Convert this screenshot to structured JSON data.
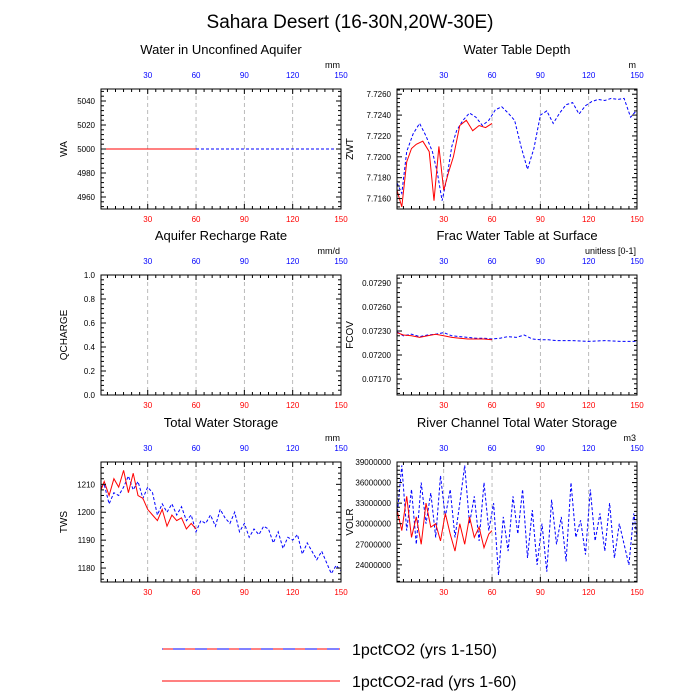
{
  "figure": {
    "title": "Sahara Desert (16-30N,20W-30E)",
    "colors": {
      "ctrl": "#0000ff",
      "rad": "#ff0000",
      "axis": "#000000",
      "grid": "#aaaaaa"
    }
  },
  "legend": {
    "items": [
      {
        "label": "1pctCO2 (yrs 1-150)",
        "style": "dashed-red-blue"
      },
      {
        "label": "1pctCO2-rad (yrs 1-60)",
        "style": "solid-red"
      }
    ]
  },
  "chart_data": [
    {
      "type": "line",
      "title": "Water in Unconfined Aquifer",
      "ylabel": "WA",
      "units": "mm",
      "xlim": [
        1,
        150
      ],
      "ylim": [
        4950,
        5050
      ],
      "yticks": [
        4960,
        4980,
        5000,
        5020,
        5040
      ],
      "xticks": [
        30,
        60,
        90,
        120,
        150
      ],
      "grid": true,
      "series": [
        {
          "name": "1pctCO2 (yrs 1-150)",
          "color": "#0000ff",
          "x": [
            1,
            150
          ],
          "y": [
            5000,
            5000
          ]
        },
        {
          "name": "1pctCO2-rad (yrs 1-60)",
          "color": "#ff0000",
          "x": [
            1,
            60
          ],
          "y": [
            5000,
            5000
          ]
        }
      ]
    },
    {
      "type": "line",
      "title": "Water Table Depth",
      "ylabel": "ZWT",
      "units": "m",
      "xlim": [
        1,
        150
      ],
      "ylim": [
        7.715,
        7.7265
      ],
      "yticks": [
        7.716,
        7.718,
        7.72,
        7.722,
        7.724,
        7.726
      ],
      "yticklabels": [
        "7.7160",
        "7.7180",
        "7.7200",
        "7.7220",
        "7.7240",
        "7.7260"
      ],
      "xticks": [
        30,
        60,
        90,
        120,
        150
      ],
      "grid": true,
      "series": [
        {
          "name": "1pctCO2 (yrs 1-150)",
          "color": "#0000ff",
          "x": [
            1,
            4,
            7,
            11,
            15,
            19,
            23,
            26,
            29,
            32,
            35,
            38,
            42,
            46,
            50,
            54,
            58,
            62,
            66,
            70,
            74,
            78,
            82,
            86,
            90,
            94,
            98,
            102,
            106,
            110,
            114,
            118,
            122,
            126,
            130,
            134,
            138,
            142,
            146,
            150
          ],
          "y": [
            7.7175,
            7.7165,
            7.7205,
            7.7222,
            7.7232,
            7.722,
            7.7205,
            7.7185,
            7.7158,
            7.718,
            7.721,
            7.7225,
            7.7235,
            7.7242,
            7.7238,
            7.723,
            7.7235,
            7.7245,
            7.7248,
            7.7242,
            7.7235,
            7.721,
            7.7188,
            7.7208,
            7.724,
            7.7244,
            7.7232,
            7.7242,
            7.725,
            7.7252,
            7.7241,
            7.7249,
            7.7253,
            7.7255,
            7.7254,
            7.7256,
            7.7255,
            7.7256,
            7.7238,
            7.7245
          ]
        },
        {
          "name": "1pctCO2-rad (yrs 1-60)",
          "color": "#ff0000",
          "x": [
            1,
            4,
            7,
            10,
            13,
            17,
            21,
            24,
            27,
            30,
            33,
            36,
            40,
            44,
            48,
            52,
            56,
            60
          ],
          "y": [
            7.7168,
            7.7152,
            7.7195,
            7.7208,
            7.7212,
            7.7215,
            7.7205,
            7.7158,
            7.721,
            7.7168,
            7.7185,
            7.72,
            7.723,
            7.7235,
            7.7225,
            7.723,
            7.7228,
            7.7232
          ]
        }
      ]
    },
    {
      "type": "line",
      "title": "Aquifer Recharge Rate",
      "ylabel": "QCHARGE",
      "units": "mm/d",
      "xlim": [
        1,
        150
      ],
      "ylim": [
        0.0,
        1.0
      ],
      "yticks": [
        0.0,
        0.2,
        0.4,
        0.6,
        0.8,
        1.0
      ],
      "yticklabels": [
        "0.0",
        "0.2",
        "0.4",
        "0.6",
        "0.8",
        "1.0"
      ],
      "xticks": [
        30,
        60,
        90,
        120,
        150
      ],
      "grid": true,
      "series": []
    },
    {
      "type": "line",
      "title": "Frac Water Table at Surface",
      "ylabel": "FCOV",
      "units": "unitless [0-1]",
      "xlim": [
        1,
        150
      ],
      "ylim": [
        0.0715,
        0.073
      ],
      "yticks": [
        0.0717,
        0.072,
        0.0723,
        0.0726,
        0.0729
      ],
      "yticklabels": [
        "0.07170",
        "0.07200",
        "0.07230",
        "0.07260",
        "0.07290"
      ],
      "xticks": [
        30,
        60,
        90,
        120,
        150
      ],
      "grid": true,
      "series": [
        {
          "name": "1pctCO2 (yrs 1-150)",
          "color": "#0000ff",
          "x": [
            1,
            5,
            10,
            15,
            20,
            25,
            30,
            35,
            40,
            45,
            50,
            55,
            60,
            65,
            70,
            75,
            80,
            85,
            90,
            95,
            100,
            110,
            120,
            130,
            140,
            150
          ],
          "y": [
            0.07229,
            0.07224,
            0.07226,
            0.07223,
            0.07225,
            0.07226,
            0.07228,
            0.07224,
            0.07223,
            0.07222,
            0.07221,
            0.07221,
            0.0722,
            0.07221,
            0.07223,
            0.07222,
            0.07225,
            0.0722,
            0.07219,
            0.07219,
            0.07218,
            0.07218,
            0.07217,
            0.07218,
            0.07217,
            0.07217
          ]
        },
        {
          "name": "1pctCO2-rad (yrs 1-60)",
          "color": "#ff0000",
          "x": [
            1,
            5,
            10,
            15,
            20,
            25,
            30,
            35,
            40,
            45,
            50,
            55,
            60
          ],
          "y": [
            0.07228,
            0.07225,
            0.07224,
            0.07222,
            0.07224,
            0.07226,
            0.07224,
            0.07222,
            0.07221,
            0.0722,
            0.0722,
            0.0722,
            0.07219
          ]
        }
      ]
    },
    {
      "type": "line",
      "title": "Total Water Storage",
      "ylabel": "TWS",
      "units": "mm",
      "xlim": [
        1,
        150
      ],
      "ylim": [
        1175,
        1218
      ],
      "yticks": [
        1180,
        1190,
        1200,
        1210
      ],
      "xticks": [
        30,
        60,
        90,
        120,
        150
      ],
      "grid": true,
      "series": [
        {
          "name": "1pctCO2 (yrs 1-150)",
          "color": "#0000ff",
          "x": [
            1,
            3,
            6,
            9,
            12,
            15,
            18,
            21,
            24,
            27,
            30,
            33,
            36,
            39,
            42,
            45,
            48,
            51,
            54,
            57,
            60,
            63,
            66,
            69,
            72,
            75,
            78,
            81,
            84,
            87,
            90,
            93,
            96,
            99,
            102,
            105,
            108,
            111,
            114,
            117,
            120,
            123,
            126,
            129,
            132,
            135,
            138,
            141,
            144,
            147,
            150
          ],
          "y": [
            1209,
            1210,
            1203,
            1207,
            1206,
            1209,
            1213,
            1208,
            1211,
            1205,
            1209,
            1207,
            1199,
            1203,
            1200,
            1203,
            1199,
            1202,
            1197,
            1199,
            1193,
            1197,
            1196,
            1199,
            1195,
            1201,
            1198,
            1196,
            1200,
            1193,
            1196,
            1191,
            1194,
            1192,
            1195,
            1194,
            1189,
            1193,
            1187,
            1191,
            1190,
            1192,
            1185,
            1189,
            1186,
            1183,
            1186,
            1182,
            1178,
            1181,
            1179
          ]
        },
        {
          "name": "1pctCO2-rad (yrs 1-60)",
          "color": "#ff0000",
          "x": [
            1,
            3,
            6,
            9,
            12,
            15,
            18,
            21,
            24,
            27,
            30,
            33,
            36,
            39,
            42,
            45,
            48,
            51,
            54,
            57,
            60
          ],
          "y": [
            1208,
            1211,
            1206,
            1212,
            1209,
            1215,
            1207,
            1214,
            1206,
            1205,
            1201,
            1199,
            1197,
            1201,
            1195,
            1199,
            1197,
            1198,
            1194,
            1196,
            1194
          ]
        }
      ]
    },
    {
      "type": "line",
      "title": "River Channel Total Water Storage",
      "ylabel": "VOLR",
      "units": "m3",
      "xlim": [
        1,
        150
      ],
      "ylim": [
        21500000,
        39000000
      ],
      "yticks": [
        24000000,
        27000000,
        30000000,
        33000000,
        36000000,
        39000000
      ],
      "yticklabels": [
        "24000000",
        "27000000",
        "30000000",
        "33000000",
        "36000000",
        "39000000"
      ],
      "xticks": [
        30,
        60,
        90,
        120,
        150
      ],
      "grid": true,
      "series": [
        {
          "name": "1pctCO2 (yrs 1-150)",
          "color": "#0000ff",
          "x": [
            1,
            4,
            7,
            10,
            13,
            16,
            19,
            22,
            25,
            28,
            31,
            34,
            37,
            40,
            43,
            46,
            49,
            52,
            55,
            58,
            61,
            64,
            67,
            70,
            73,
            76,
            79,
            82,
            85,
            88,
            91,
            94,
            97,
            100,
            103,
            106,
            109,
            112,
            115,
            118,
            121,
            124,
            127,
            130,
            133,
            136,
            139,
            142,
            145,
            148,
            150
          ],
          "y": [
            31000000,
            38500000,
            29000000,
            35000000,
            27000000,
            36000000,
            30000000,
            34500000,
            28000000,
            37000000,
            31000000,
            35000000,
            28000000,
            33000000,
            38500000,
            30000000,
            34000000,
            27500000,
            36000000,
            29000000,
            33000000,
            22500000,
            31000000,
            26000000,
            34000000,
            28500000,
            35000000,
            25000000,
            32000000,
            24000000,
            30000000,
            23000000,
            33500000,
            27000000,
            31000000,
            24500000,
            36000000,
            28000000,
            30500000,
            25500000,
            35000000,
            27500000,
            31500000,
            26000000,
            33000000,
            25000000,
            30000000,
            27000000,
            24000000,
            31500000,
            28000000
          ]
        },
        {
          "name": "1pctCO2-rad (yrs 1-60)",
          "color": "#ff0000",
          "x": [
            1,
            4,
            7,
            10,
            13,
            16,
            19,
            22,
            25,
            28,
            31,
            34,
            37,
            40,
            43,
            46,
            49,
            52,
            55,
            58,
            60
          ],
          "y": [
            32000000,
            29000000,
            34000000,
            28000000,
            31000000,
            27000000,
            33000000,
            29500000,
            30000000,
            27500000,
            31500000,
            28500000,
            26000000,
            30000000,
            27000000,
            31000000,
            28000000,
            29500000,
            26500000,
            28500000,
            29000000
          ]
        }
      ]
    }
  ]
}
